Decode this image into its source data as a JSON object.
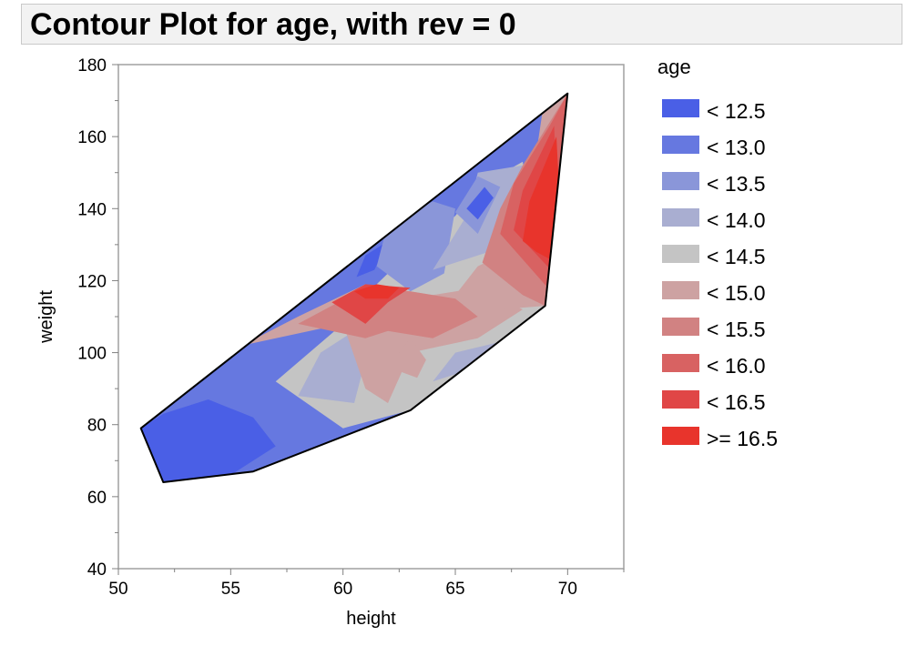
{
  "chart_data": {
    "type": "contour",
    "title": "Contour Plot for age, with rev = 0",
    "xlabel": "height",
    "ylabel": "weight",
    "xlim": [
      50,
      72.5
    ],
    "ylim": [
      40,
      180
    ],
    "x_ticks": [
      50,
      55,
      60,
      65,
      70
    ],
    "y_ticks": [
      40,
      60,
      80,
      100,
      120,
      140,
      160,
      180
    ],
    "hull": [
      [
        51,
        79
      ],
      [
        52,
        64
      ],
      [
        56,
        67
      ],
      [
        63,
        84
      ],
      [
        69,
        113
      ],
      [
        70,
        172
      ]
    ],
    "legend": {
      "title": "age",
      "position": "right",
      "levels": [
        {
          "label": "< 12.5",
          "color": "#4a5fe6"
        },
        {
          "label": "< 13.0",
          "color": "#6678e0"
        },
        {
          "label": "< 13.5",
          "color": "#8a96d9"
        },
        {
          "label": "< 14.0",
          "color": "#a9aed1"
        },
        {
          "label": "< 14.5",
          "color": "#c4c4c4"
        },
        {
          "label": "< 15.0",
          "color": "#cda2a2"
        },
        {
          "label": "< 15.5",
          "color": "#d18282"
        },
        {
          "label": "< 16.0",
          "color": "#d86262"
        },
        {
          "label": "< 16.5",
          "color": "#e04646"
        },
        {
          "label": ">= 16.5",
          "color": "#e8342c"
        }
      ]
    },
    "regions": [
      {
        "level": 1,
        "points": [
          [
            51,
            79
          ],
          [
            52,
            64
          ],
          [
            56,
            67
          ],
          [
            63,
            84
          ],
          [
            69,
            113
          ],
          [
            70,
            172
          ]
        ]
      },
      {
        "level": 0,
        "points": [
          [
            51,
            79
          ],
          [
            52,
            64
          ],
          [
            55,
            66
          ],
          [
            57,
            74
          ],
          [
            56,
            82
          ],
          [
            54,
            87
          ],
          [
            52,
            83
          ]
        ]
      },
      {
        "level": 0,
        "points": [
          [
            59,
            96
          ],
          [
            60,
            103
          ],
          [
            60.4,
            90
          ],
          [
            60,
            84
          ],
          [
            59,
            88
          ]
        ]
      },
      {
        "level": 0,
        "points": [
          [
            60.6,
            121
          ],
          [
            61,
            127
          ],
          [
            62,
            131
          ],
          [
            61.4,
            123
          ]
        ]
      },
      {
        "level": 4,
        "points": [
          [
            57,
            92
          ],
          [
            60,
            108
          ],
          [
            61,
            116
          ],
          [
            63,
            128
          ],
          [
            65,
            138
          ],
          [
            66,
            146
          ],
          [
            68,
            153
          ],
          [
            69,
            113
          ],
          [
            63,
            84
          ],
          [
            60,
            79
          ]
        ]
      },
      {
        "level": 2,
        "points": [
          [
            61.5,
            124
          ],
          [
            62,
            136
          ],
          [
            64,
            142
          ],
          [
            65,
            140
          ],
          [
            64.5,
            122
          ],
          [
            63,
            117
          ]
        ]
      },
      {
        "level": 3,
        "points": [
          [
            58,
            88
          ],
          [
            59,
            100
          ],
          [
            61,
            108
          ],
          [
            61,
            98
          ],
          [
            60.5,
            86
          ]
        ]
      },
      {
        "level": 3,
        "points": [
          [
            64,
            123
          ],
          [
            65.5,
            138
          ],
          [
            66,
            150
          ],
          [
            68,
            152
          ],
          [
            66.5,
            128
          ]
        ]
      },
      {
        "level": 2,
        "points": [
          [
            65,
            139
          ],
          [
            66,
            149
          ],
          [
            67,
            146
          ],
          [
            66,
            133
          ]
        ]
      },
      {
        "level": 0,
        "points": [
          [
            65.5,
            140
          ],
          [
            66.3,
            146
          ],
          [
            66.7,
            143
          ],
          [
            66,
            137
          ]
        ]
      },
      {
        "level": 3,
        "points": [
          [
            64,
            92
          ],
          [
            65,
            100
          ],
          [
            67,
            103
          ],
          [
            68,
            104
          ],
          [
            66,
            96
          ]
        ]
      },
      {
        "level": 5,
        "points": [
          [
            55.5,
            102
          ],
          [
            58,
            110
          ],
          [
            61,
            119
          ],
          [
            64,
            116
          ],
          [
            66,
            118
          ],
          [
            68,
            112
          ],
          [
            66,
            104
          ],
          [
            63,
            100
          ],
          [
            62,
            86
          ],
          [
            61,
            90
          ],
          [
            60,
            108
          ]
        ]
      },
      {
        "level": 6,
        "points": [
          [
            58,
            108
          ],
          [
            61,
            118
          ],
          [
            63,
            117
          ],
          [
            65,
            115
          ],
          [
            66,
            110
          ],
          [
            64,
            104
          ],
          [
            62,
            106
          ],
          [
            61,
            104
          ]
        ]
      },
      {
        "level": 8,
        "points": [
          [
            59.5,
            114
          ],
          [
            61,
            119
          ],
          [
            63,
            118
          ],
          [
            62,
            114
          ],
          [
            61,
            108
          ],
          [
            60,
            112
          ]
        ]
      },
      {
        "level": 9,
        "points": [
          [
            60.5,
            117
          ],
          [
            61.5,
            119
          ],
          [
            62.5,
            118
          ],
          [
            62,
            115
          ],
          [
            61,
            115
          ]
        ]
      },
      {
        "level": 5,
        "points": [
          [
            62,
            96
          ],
          [
            63,
            104
          ],
          [
            63.7,
            98
          ],
          [
            63.3,
            93
          ]
        ]
      },
      {
        "level": 5,
        "points": [
          [
            65,
            116
          ],
          [
            66,
            124
          ],
          [
            68,
            130
          ],
          [
            69,
            172
          ],
          [
            70,
            172
          ],
          [
            69,
            113
          ],
          [
            67,
            112
          ]
        ]
      },
      {
        "level": 6,
        "points": [
          [
            66.2,
            125
          ],
          [
            67,
            140
          ],
          [
            68,
            152
          ],
          [
            70,
            172
          ],
          [
            69,
            113
          ],
          [
            68,
            116
          ]
        ]
      },
      {
        "level": 7,
        "points": [
          [
            67,
            133
          ],
          [
            67.6,
            147
          ],
          [
            69.2,
            163
          ],
          [
            70,
            172
          ],
          [
            69.4,
            116
          ]
        ]
      },
      {
        "level": 8,
        "points": [
          [
            67.6,
            134
          ],
          [
            68,
            145
          ],
          [
            69.4,
            163
          ],
          [
            69.7,
            120
          ]
        ]
      },
      {
        "level": 9,
        "points": [
          [
            68,
            131
          ],
          [
            68.3,
            142
          ],
          [
            69.5,
            160
          ],
          [
            69.8,
            124
          ],
          [
            68.6,
            128
          ]
        ]
      }
    ]
  }
}
